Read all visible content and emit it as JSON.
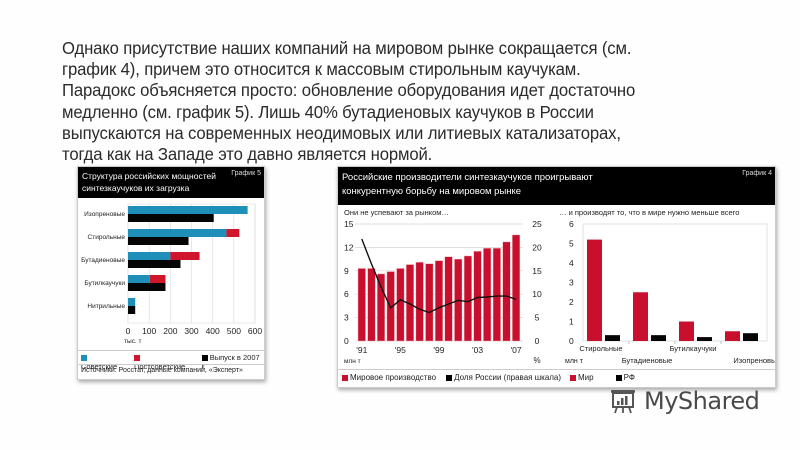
{
  "paragraph": {
    "lines": [
      "Однако присутствие наших компаний на мировом рынке сокращается (см.",
      "график 4), причем это относится к массовым стирольным каучукам.",
      "Парадокс объясняется просто: обновление оборудования идет достаточно",
      "медленно (см. график 5). Лишь 40% бутадиеновых каучуков в России",
      "выпускаются на современных неодимовых или литиевых катализаторах,",
      "тогда как на Западе это давно является нормой."
    ]
  },
  "left_panel": {
    "title": "Структура российских мощностей синтезкаучуков их загрузка",
    "tag": "График 5",
    "unit": "тыс. т",
    "legend": [
      {
        "label": "Советские",
        "color": "#1e8fb8"
      },
      {
        "label": "Постсоветские",
        "color": "#d0162d"
      },
      {
        "label": "Выпуск в 2007 г.",
        "color": "#000000"
      }
    ],
    "source": "Источники: Росстат, данные компаний, «Эксперт»"
  },
  "right_panel": {
    "title": "Российские производители синтезкаучуков проигрывают конкурентную борьбу на мировом рынке",
    "tag": "График 4",
    "sub_left": "Они не успевают за рынком…",
    "sub_right": "… и производят то, что в мире нужно меньше всего",
    "unit_left": "млн т",
    "unit_right_axis": "%",
    "unit_right_chart": "млн т",
    "legend_left": [
      {
        "label": "Мировое производство",
        "color": "#c8102e"
      },
      {
        "label": "Доля России (правая шкала)",
        "color": "#000000"
      }
    ],
    "legend_right": [
      {
        "label": "Мир",
        "color": "#c8102e"
      },
      {
        "label": "РФ",
        "color": "#000000"
      }
    ]
  },
  "watermark": {
    "text": "MyShared",
    "icon": "presentation-board-icon"
  },
  "chart_data": [
    {
      "type": "bar",
      "orientation": "horizontal",
      "stacked_capacity": true,
      "title": "Структура российских мощностей синтезкаучуков их загрузка",
      "categories": [
        "Изопреновые",
        "Стирольные",
        "Бутадиеновые",
        "Бутилкаучуки",
        "Нитрильные"
      ],
      "series": [
        {
          "name": "Советские",
          "values": [
            565,
            465,
            200,
            103,
            34
          ]
        },
        {
          "name": "Постсоветские",
          "values": [
            0,
            61,
            138,
            74,
            0
          ]
        },
        {
          "name": "Выпуск в 2007 г.",
          "values": [
            405,
            286,
            248,
            177,
            34
          ]
        }
      ],
      "xlabel": "тыс. т",
      "xlim": [
        0,
        600
      ],
      "xticks": [
        0,
        100,
        200,
        300,
        400,
        500,
        600
      ],
      "grid": true,
      "legend_position": "bottom"
    },
    {
      "type": "bar+line",
      "title": "Они не успевают за рынком…",
      "x": [
        "'91",
        "'92",
        "'93",
        "'94",
        "'95",
        "'96",
        "'97",
        "'98",
        "'99",
        "'00",
        "'01",
        "'02",
        "'03",
        "'04",
        "'05",
        "'06",
        "'07"
      ],
      "xtick_labels": [
        "'91",
        "'95",
        "'99",
        "'03",
        "'07"
      ],
      "series": [
        {
          "name": "Мировое производство",
          "type": "bar",
          "axis": "left",
          "values": [
            9.3,
            9.3,
            8.6,
            8.9,
            9.3,
            9.8,
            10.1,
            9.9,
            10.3,
            10.8,
            10.5,
            10.9,
            11.5,
            11.9,
            11.9,
            12.7,
            13.6
          ]
        },
        {
          "name": "Доля России (правая шкала)",
          "type": "line",
          "axis": "right",
          "values": [
            21.8,
            16.5,
            11.5,
            7.1,
            8.8,
            7.9,
            6.8,
            6.1,
            7.1,
            7.9,
            8.7,
            8.4,
            9.3,
            9.4,
            9.6,
            9.6,
            8.9
          ]
        }
      ],
      "ylabel_left": "млн т",
      "ylabel_right": "%",
      "ylim_left": [
        0,
        15
      ],
      "yticks_left": [
        0,
        3,
        6,
        9,
        12,
        15
      ],
      "ylim_right": [
        0,
        25
      ],
      "yticks_right": [
        0,
        5,
        10,
        15,
        20,
        25
      ],
      "grid": true
    },
    {
      "type": "bar",
      "title": "… и производят то, что в мире нужно меньше всего",
      "categories": [
        "Стирольные",
        "Бутадиеновые",
        "Бутилкаучуки",
        "Изопреновые"
      ],
      "series": [
        {
          "name": "Мир",
          "values": [
            5.2,
            2.5,
            1.0,
            0.5
          ]
        },
        {
          "name": "РФ",
          "values": [
            0.3,
            0.3,
            0.2,
            0.4
          ]
        }
      ],
      "ylabel": "млн т",
      "ylim": [
        0,
        6
      ],
      "yticks": [
        0,
        1,
        2,
        3,
        4,
        5,
        6
      ],
      "grid": true
    }
  ]
}
